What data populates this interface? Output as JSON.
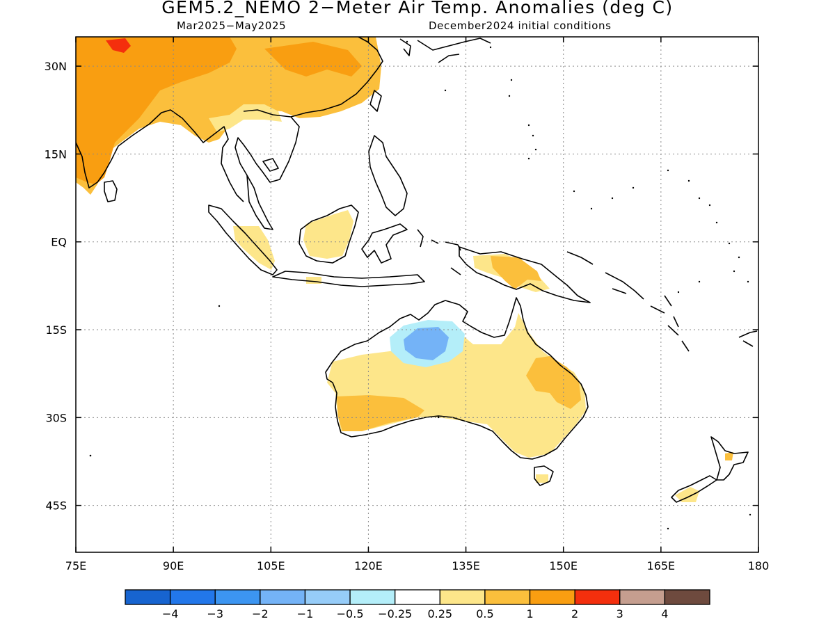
{
  "title": "GEM5.2_NEMO 2−Meter Air Temp. Anomalies (deg C)",
  "period": "Mar2025−May2025",
  "initial_conditions": "December2024 initial conditions",
  "map": {
    "lon_range": [
      75,
      180
    ],
    "lat_range": [
      -53,
      35
    ],
    "lon_ticks": [
      {
        "value": 75,
        "label": "75E"
      },
      {
        "value": 90,
        "label": "90E"
      },
      {
        "value": 105,
        "label": "105E"
      },
      {
        "value": 120,
        "label": "120E"
      },
      {
        "value": 135,
        "label": "135E"
      },
      {
        "value": 150,
        "label": "150E"
      },
      {
        "value": 165,
        "label": "165E"
      },
      {
        "value": 180,
        "label": "180"
      }
    ],
    "lat_ticks": [
      {
        "value": 30,
        "label": "30N"
      },
      {
        "value": 15,
        "label": "15N"
      },
      {
        "value": 0,
        "label": "EQ"
      },
      {
        "value": -15,
        "label": "15S"
      },
      {
        "value": -30,
        "label": "30S"
      },
      {
        "value": -45,
        "label": "45S"
      }
    ],
    "grid": "dotted"
  },
  "colorbar": {
    "colors": [
      "#1764d0",
      "#2277ea",
      "#3c95f1",
      "#74b3f7",
      "#96ccf8",
      "#b4eef9",
      "#ffffff",
      "#fde68a",
      "#fbbf3c",
      "#f99e11",
      "#f42f0d",
      "#c59e8f",
      "#6e4a3e"
    ],
    "labels": [
      "−4",
      "−3",
      "−2",
      "−1",
      "−0.5",
      "−0.25",
      "0.25",
      "0.5",
      "1",
      "2",
      "3",
      "4"
    ]
  },
  "anomaly_regions": [
    {
      "region": "South Asia / Tibet",
      "range": "0.5 to 1",
      "color": "#fbbf3c"
    },
    {
      "region": "India interior",
      "range": "1 to 2",
      "color": "#f99e11"
    },
    {
      "region": "Western Tibet peak",
      "range": "2 to 3",
      "color": "#f42f0d"
    },
    {
      "region": "Southern China coast",
      "range": "0.25 to 0.5",
      "color": "#fde68a"
    },
    {
      "region": "Borneo / Sumatra",
      "range": "0.25 to 0.5",
      "color": "#fde68a"
    },
    {
      "region": "New Guinea",
      "range": "0.25 to 1",
      "color": "#fbbf3c"
    },
    {
      "region": "Northwest Australia",
      "range": "-1 to -0.25",
      "color": "#96ccf8"
    },
    {
      "region": "Central & southern Australia",
      "range": "0.25 to 1",
      "color": "#fde68a"
    },
    {
      "region": "Southwest Australia",
      "range": "0.5 to 1",
      "color": "#fbbf3c"
    },
    {
      "region": "Southern New Zealand",
      "range": "0.25 to 0.5",
      "color": "#fde68a"
    }
  ]
}
